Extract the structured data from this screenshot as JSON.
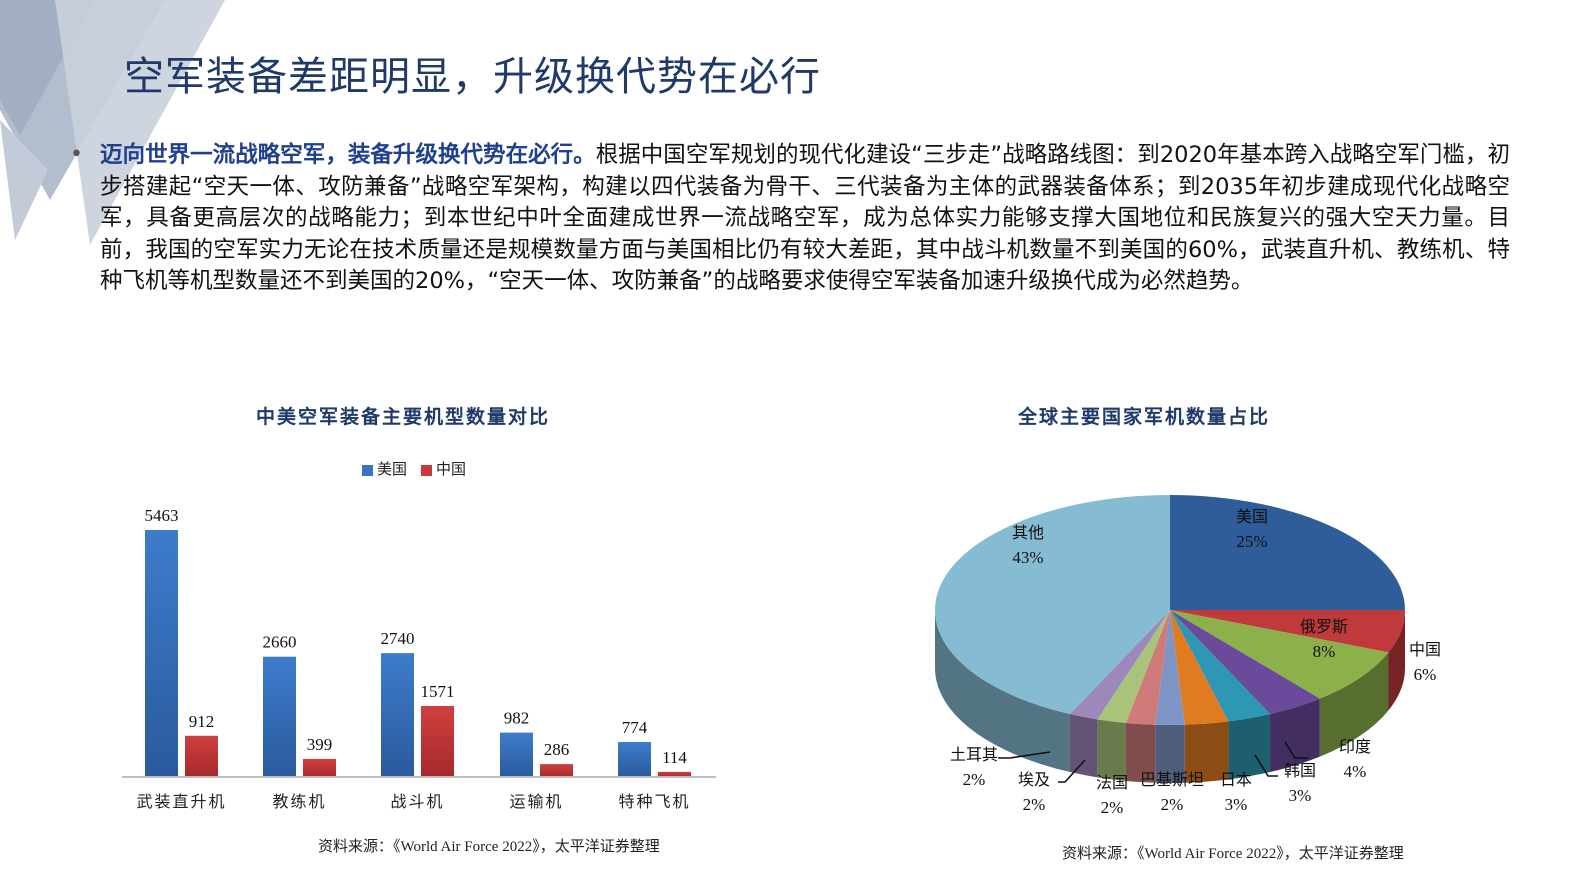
{
  "page": {
    "title": "空军装备差距明显，升级换代势在必行",
    "bullet": {
      "lead": "迈向世界一流战略空军，装备升级换代势在必行。",
      "body": "根据中国空军规划的现代化建设“三步走”战略路线图：到2020年基本跨入战略空军门槛，初步搭建起“空天一体、攻防兼备”战略空军架构，构建以四代装备为骨干、三代装备为主体的武器装备体系；到2035年初步建成现代化战略空军，具备更高层次的战略能力；到本世纪中叶全面建成世界一流战略空军，成为总体实力能够支撑大国地位和民族复兴的强大空天力量。目前，我国的空军实力无论在技术质量还是规模数量方面与美国相比仍有较大差距，其中战斗机数量不到美国的60%，武装直升机、教练机、特种飞机等机型数量还不到美国的20%，“空天一体、攻防兼备”的战略要求使得空军装备加速升级换代成为必然趋势。"
    },
    "colors": {
      "title": "#1f3a68",
      "lead": "#1f3f8f",
      "usa_bar": "#3a73c0",
      "china_bar": "#c9383a"
    }
  },
  "chart_data": [
    {
      "type": "bar",
      "title": "中美空军装备主要机型数量对比",
      "categories": [
        "武装直升机",
        "教练机",
        "战斗机",
        "运输机",
        "特种飞机"
      ],
      "series": [
        {
          "name": "美国",
          "color": "#3a73c0",
          "values": [
            5463,
            2660,
            2740,
            982,
            774
          ]
        },
        {
          "name": "中国",
          "color": "#c9383a",
          "values": [
            912,
            399,
            1571,
            286,
            114
          ]
        }
      ],
      "xlabel": "",
      "ylabel": "",
      "ylim": [
        0,
        5463
      ],
      "grid": false,
      "legend_position": "top",
      "source": "资料来源：《World Air Force 2022》，太平洋证券整理"
    },
    {
      "type": "pie",
      "title": "全球主要国家军机数量占比",
      "labels": [
        "美国",
        "中国",
        "俄罗斯",
        "印度",
        "韩国",
        "日本",
        "巴基斯坦",
        "法国",
        "埃及",
        "土耳其",
        "其他"
      ],
      "values": [
        25,
        6,
        8,
        4,
        3,
        3,
        2,
        2,
        2,
        2,
        43
      ],
      "value_labels": [
        "25%",
        "6%",
        "8%",
        "4%",
        "3%",
        "3%",
        "2%",
        "2%",
        "2%",
        "2%",
        "43%"
      ],
      "colors": [
        "#2f5d9a",
        "#c0393b",
        "#8db14a",
        "#6a4a9b",
        "#2e97b3",
        "#e07b22",
        "#7f95c5",
        "#d07a7a",
        "#a9c47a",
        "#9d88bc",
        "#86bcd3"
      ],
      "style": "3d",
      "source": "资料来源：《World Air Force 2022》，太平洋证券整理"
    }
  ]
}
